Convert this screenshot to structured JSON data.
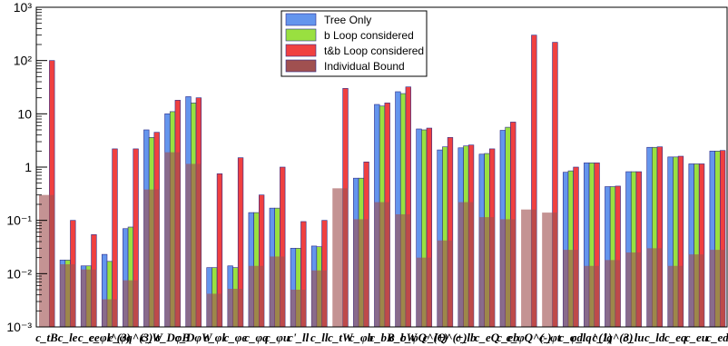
{
  "chart_data": {
    "type": "bar",
    "yscale": "log",
    "ylim": [
      0.001,
      1000
    ],
    "y_tick_labels": [
      "10⁻³",
      "10⁻²",
      "10⁻¹",
      "1",
      "10",
      "10²",
      "10³"
    ],
    "categories": [
      "c_tB",
      "c_le",
      "c_ee",
      "c_φl^(3)",
      "c_φq^(3)",
      "c_W",
      "c_DφB",
      "c_DφW",
      "c_φl",
      "c_φe",
      "c_φq",
      "c_φu",
      "c'_ll",
      "c_ll",
      "c_tW",
      "c_φb",
      "c_bB",
      "c_bW",
      "c_φQ^(+)",
      "c_lQ^(+)",
      "c_lb",
      "c_eQ",
      "c_eb",
      "c_φQ^(-)",
      "c_φt",
      "c_φd",
      "c_lq^(1)",
      "c_lq^(3)",
      "c_lu",
      "c_ld",
      "c_eq",
      "c_eu",
      "c_ed"
    ],
    "series": [
      {
        "name": "Tree Only",
        "color": "#6495ED",
        "values": [
          null,
          0.018,
          0.014,
          0.023,
          0.07,
          5.0,
          10.0,
          21.0,
          0.013,
          0.014,
          0.14,
          0.17,
          0.03,
          0.033,
          null,
          0.62,
          15.0,
          26.0,
          5.2,
          2.1,
          2.3,
          1.75,
          4.9,
          null,
          null,
          0.8,
          1.2,
          0.43,
          0.82,
          2.35,
          1.55,
          1.15,
          2.0
        ]
      },
      {
        "name": "b Loop considered",
        "color": "#99E040",
        "values": [
          null,
          0.018,
          0.014,
          0.017,
          0.075,
          3.6,
          11.0,
          16.0,
          0.013,
          0.013,
          0.14,
          0.17,
          0.03,
          0.032,
          null,
          0.62,
          14.0,
          24.0,
          5.0,
          2.4,
          2.5,
          1.8,
          5.6,
          null,
          null,
          0.85,
          1.2,
          0.43,
          0.82,
          2.35,
          1.55,
          1.15,
          2.0
        ]
      },
      {
        "name": "t&b Loop considered",
        "color": "#F04040",
        "values": [
          100,
          0.1,
          0.054,
          2.2,
          2.2,
          4.5,
          18.0,
          20.0,
          0.75,
          1.5,
          0.3,
          1.0,
          0.095,
          0.1,
          30.0,
          1.25,
          16.0,
          32.0,
          5.4,
          3.6,
          2.6,
          2.2,
          7.0,
          300,
          220,
          1.0,
          1.2,
          0.44,
          0.82,
          2.4,
          1.6,
          1.15,
          2.05
        ]
      },
      {
        "name": "Individual Bound",
        "color": "#A05050",
        "values": [
          0.3,
          0.015,
          0.012,
          0.0033,
          0.0075,
          0.38,
          1.9,
          1.15,
          0.0042,
          0.0052,
          0.014,
          0.021,
          0.005,
          0.0115,
          0.4,
          0.105,
          0.22,
          0.13,
          0.02,
          0.042,
          0.22,
          0.115,
          0.105,
          0.16,
          0.14,
          0.028,
          0.014,
          0.018,
          0.025,
          0.03,
          0.014,
          0.023,
          0.028
        ]
      }
    ],
    "title": "",
    "xlabel": "",
    "ylabel": "",
    "grid": false,
    "legend_placement": "top-center"
  }
}
